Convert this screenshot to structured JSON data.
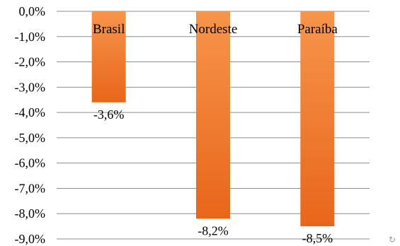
{
  "chart_data": {
    "type": "bar",
    "categories": [
      "Brasil",
      "Nordeste",
      "Paraíba"
    ],
    "values": [
      -3.6,
      -8.2,
      -8.5
    ],
    "data_labels": [
      "-3,6%",
      "-8,2%",
      "-8,5%"
    ],
    "ylim": [
      -9.0,
      0.0
    ],
    "yticks": [
      0,
      -1,
      -2,
      -3,
      -4,
      -5,
      -6,
      -7,
      -8,
      -9
    ],
    "ytick_labels": [
      "0,0%",
      "-1,0%",
      "-2,0%",
      "-3,0%",
      "-4,0%",
      "-5,0%",
      "-6,0%",
      "-7,0%",
      "-8,0%",
      "-9,0%"
    ],
    "grid": true,
    "bar_color_top": "#f7954b",
    "bar_color_bottom": "#e8661a",
    "grid_color": "#8c8c8c"
  },
  "corner_icon": "loop-icon"
}
